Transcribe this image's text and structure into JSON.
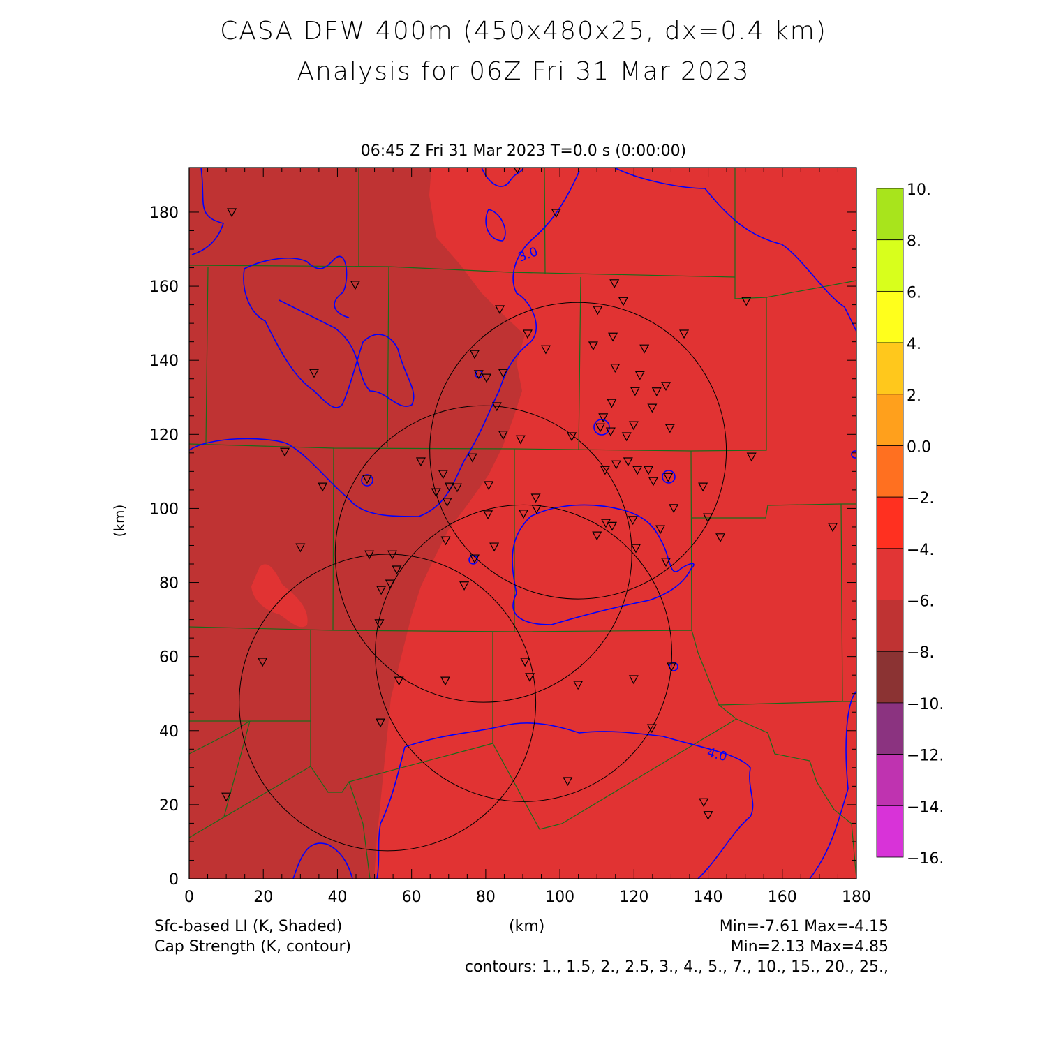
{
  "header": {
    "title_line1": "CASA DFW 400m (450x480x25, dx=0.4 km)",
    "title_line2": "Analysis for 06Z Fri 31 Mar 2023",
    "valid_time": "06:45 Z Fri 31 Mar 2023    T=0.0 s (0:00:00)"
  },
  "footer": {
    "field1": "Sfc-based LI (K, Shaded)",
    "field2": "Cap Strength (K, contour)",
    "xlabel": "(km)",
    "field1_range": "Min=-7.61 Max=-4.15",
    "field2_range": "Min=2.13 Max=4.85",
    "contours": "contours: 1., 1.5, 2., 2.5, 3., 4., 5., 7., 10., 15., 20., 25.,"
  },
  "chart_data": {
    "type": "heatmap",
    "title": "CASA DFW 400m (450x480x25, dx=0.4 km)",
    "xlabel": "(km)",
    "ylabel": "(km)",
    "xlim": [
      0,
      180
    ],
    "ylim": [
      0,
      192
    ],
    "x_ticks": [
      "0",
      "20",
      "40",
      "60",
      "80",
      "100",
      "120",
      "140",
      "160",
      "180"
    ],
    "y_ticks": [
      "0",
      "20",
      "40",
      "60",
      "80",
      "100",
      "120",
      "140",
      "160",
      "180"
    ],
    "x_tick_values": [
      0,
      20,
      40,
      60,
      80,
      100,
      120,
      140,
      160,
      180
    ],
    "y_tick_values": [
      0,
      20,
      40,
      60,
      80,
      100,
      120,
      140,
      160,
      180
    ],
    "colorbar": {
      "labels": [
        "10.",
        "8.",
        "6.",
        "4.",
        "2.",
        "0.0",
        "-2.",
        "-4.",
        "-6.",
        "-8.",
        "-10.",
        "-12.",
        "-14.",
        "-16."
      ],
      "colors": [
        "#a8e41c",
        "#d8ff1c",
        "#ffff1c",
        "#ffc81c",
        "#ffa01c",
        "#ff7020",
        "#ff3020",
        "#e13535",
        "#bf3333",
        "#8b3333",
        "#8b3380",
        "#bf33b0",
        "#d833d8"
      ]
    },
    "shading_colors": {
      "west": "#bf3333",
      "east": "#e13333"
    },
    "contour_labels": [
      "3.0",
      "4.0"
    ],
    "range_rings_km": [
      {
        "cx": 104.9,
        "cy": 115.6,
        "r": 40
      },
      {
        "cx": 79.4,
        "cy": 87.7,
        "r": 40
      },
      {
        "cx": 90.2,
        "cy": 60.9,
        "r": 40
      },
      {
        "cx": 53.5,
        "cy": 47.6,
        "r": 40
      }
    ],
    "stations_km": [
      [
        11.5,
        180
      ],
      [
        44.8,
        160.4
      ],
      [
        33.7,
        136.6
      ],
      [
        25.8,
        115.3
      ],
      [
        36,
        105.9
      ],
      [
        30,
        89.5
      ],
      [
        19.8,
        58.6
      ],
      [
        10,
        22.2
      ],
      [
        51.6,
        42.2
      ],
      [
        51.3,
        69
      ],
      [
        56.6,
        53.5
      ],
      [
        69.1,
        53.5
      ],
      [
        48.6,
        87.6
      ],
      [
        54.8,
        87.6
      ],
      [
        56,
        83.5
      ],
      [
        51.8,
        78
      ],
      [
        54.2,
        79.7
      ],
      [
        74.2,
        79.2
      ],
      [
        69.2,
        91.4
      ],
      [
        77,
        86.5
      ],
      [
        82.3,
        89.7
      ],
      [
        80.6,
        98.4
      ],
      [
        90.2,
        98.6
      ],
      [
        93.7,
        99.9
      ],
      [
        93.5,
        102.9
      ],
      [
        80.8,
        106.3
      ],
      [
        76.4,
        113.8
      ],
      [
        70.2,
        105.9
      ],
      [
        72.3,
        105.7
      ],
      [
        69.6,
        101.8
      ],
      [
        66.6,
        104.4
      ],
      [
        68.5,
        109.3
      ],
      [
        62.5,
        112.7
      ],
      [
        48,
        108
      ],
      [
        84.7,
        119.9
      ],
      [
        89.4,
        118.7
      ],
      [
        83,
        127.6
      ],
      [
        80.2,
        135.3
      ],
      [
        78.1,
        136.3
      ],
      [
        77,
        141.7
      ],
      [
        84.7,
        136.6
      ],
      [
        83.8,
        153.8
      ],
      [
        91.3,
        147.2
      ],
      [
        96.2,
        143
      ],
      [
        88.5,
        191.7
      ],
      [
        99,
        179.8
      ],
      [
        103.2,
        119.5
      ],
      [
        110.2,
        153.6
      ],
      [
        114.7,
        160.8
      ],
      [
        117.1,
        156
      ],
      [
        109,
        144
      ],
      [
        114.3,
        146.4
      ],
      [
        122.8,
        143.2
      ],
      [
        133.5,
        147.2
      ],
      [
        114.9,
        138
      ],
      [
        121.6,
        136
      ],
      [
        120.3,
        131.7
      ],
      [
        126.1,
        131.6
      ],
      [
        128.6,
        133.1
      ],
      [
        124.9,
        127.2
      ],
      [
        114,
        128.5
      ],
      [
        111.7,
        124.6
      ],
      [
        110.9,
        121.9
      ],
      [
        113.7,
        120.8
      ],
      [
        118,
        119.5
      ],
      [
        119.9,
        122.5
      ],
      [
        129.7,
        121.7
      ],
      [
        112.2,
        110.4
      ],
      [
        115.2,
        111.9
      ],
      [
        118.4,
        112.7
      ],
      [
        120.9,
        110.4
      ],
      [
        123.9,
        110.4
      ],
      [
        125.2,
        107.4
      ],
      [
        129.2,
        108.5
      ],
      [
        138.6,
        105.9
      ],
      [
        130.7,
        100.1
      ],
      [
        139.9,
        97.6
      ],
      [
        143.3,
        92.2
      ],
      [
        150.3,
        156
      ],
      [
        151.7,
        114
      ],
      [
        173.6,
        95
      ],
      [
        119.7,
        96.9
      ],
      [
        112.4,
        96.1
      ],
      [
        114.1,
        95.3
      ],
      [
        110,
        92.7
      ],
      [
        120.5,
        89.3
      ],
      [
        127.1,
        94.4
      ],
      [
        128.6,
        85.6
      ],
      [
        90.6,
        58.6
      ],
      [
        91.9,
        54.5
      ],
      [
        104.9,
        52.4
      ],
      [
        119.9,
        53.9
      ],
      [
        130.1,
        57.3
      ],
      [
        124.8,
        40.7
      ],
      [
        102.1,
        26.4
      ],
      [
        138.8,
        20.7
      ],
      [
        140,
        17.2
      ]
    ]
  }
}
